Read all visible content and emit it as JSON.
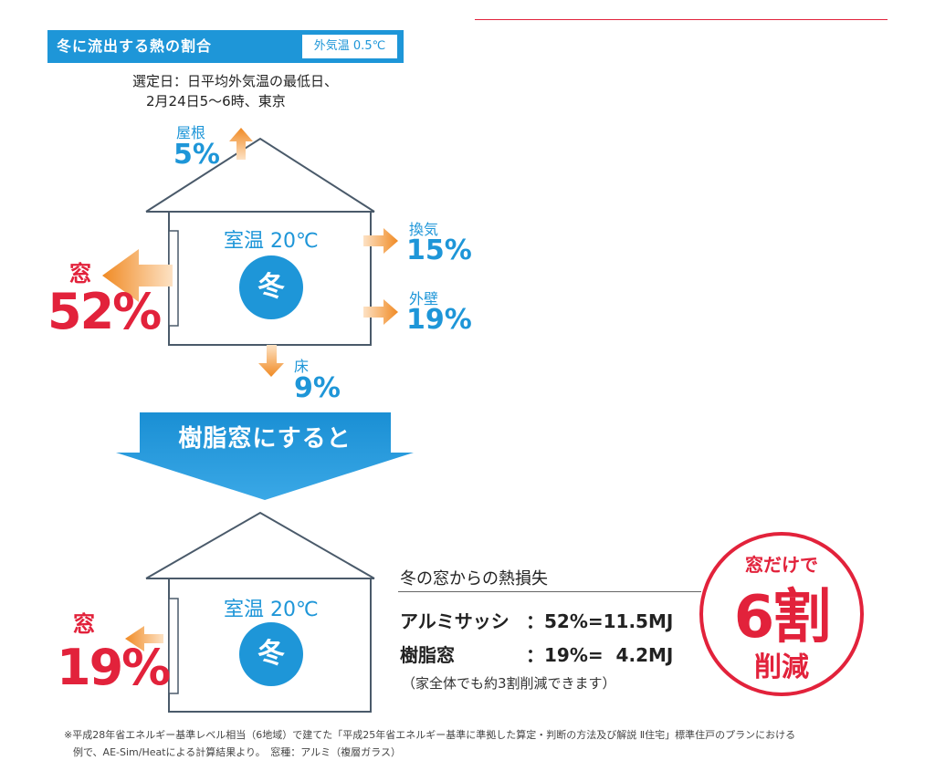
{
  "header": {
    "title": "冬に流出する熱の割合",
    "outside_temp": "外気温 0.5℃"
  },
  "selection_note": {
    "line1": "選定日：日平均外気温の最低日、",
    "line2": "2月24日5～6時、東京"
  },
  "before": {
    "room_temp": "室温 20℃",
    "season": "冬",
    "losses": {
      "roof": {
        "label": "屋根",
        "value": "5%"
      },
      "ventilation": {
        "label": "換気",
        "value": "15%"
      },
      "outer_wall": {
        "label": "外壁",
        "value": "19%"
      },
      "floor": {
        "label": "床",
        "value": "9%"
      },
      "window": {
        "label": "窓",
        "value": "52%"
      }
    }
  },
  "transition": {
    "label": "樹脂窓にすると"
  },
  "after": {
    "room_temp": "室温 20℃",
    "season": "冬",
    "window": {
      "label": "窓",
      "value": "19%"
    }
  },
  "comparison": {
    "title": "冬の窓からの熱損失",
    "rows": [
      {
        "name": "アルミサッシ",
        "value": "：52%=11.5MJ"
      },
      {
        "name": "樹脂窓",
        "value": "：19%=  4.2MJ"
      }
    ],
    "note": "（家全体でも約3割削減できます）"
  },
  "badge": {
    "top": "窓だけで",
    "main": "6割",
    "bottom": "削減"
  },
  "footnote": {
    "line1": "※平成28年省エネルギー基準レベル相当（6地域）で建てた「平成25年省エネルギー基準に準拠した算定・判断の方法及び解説 Ⅱ住宅」標準住戸のプランにおける",
    "line2": "例で、AE-Sim/Heatによる計算結果より。　窓種：アルミ（複層ガラス）"
  },
  "colors": {
    "accent_blue": "#1e96d8",
    "accent_red": "#e2223b",
    "arrow_orange": "#f08a24"
  }
}
